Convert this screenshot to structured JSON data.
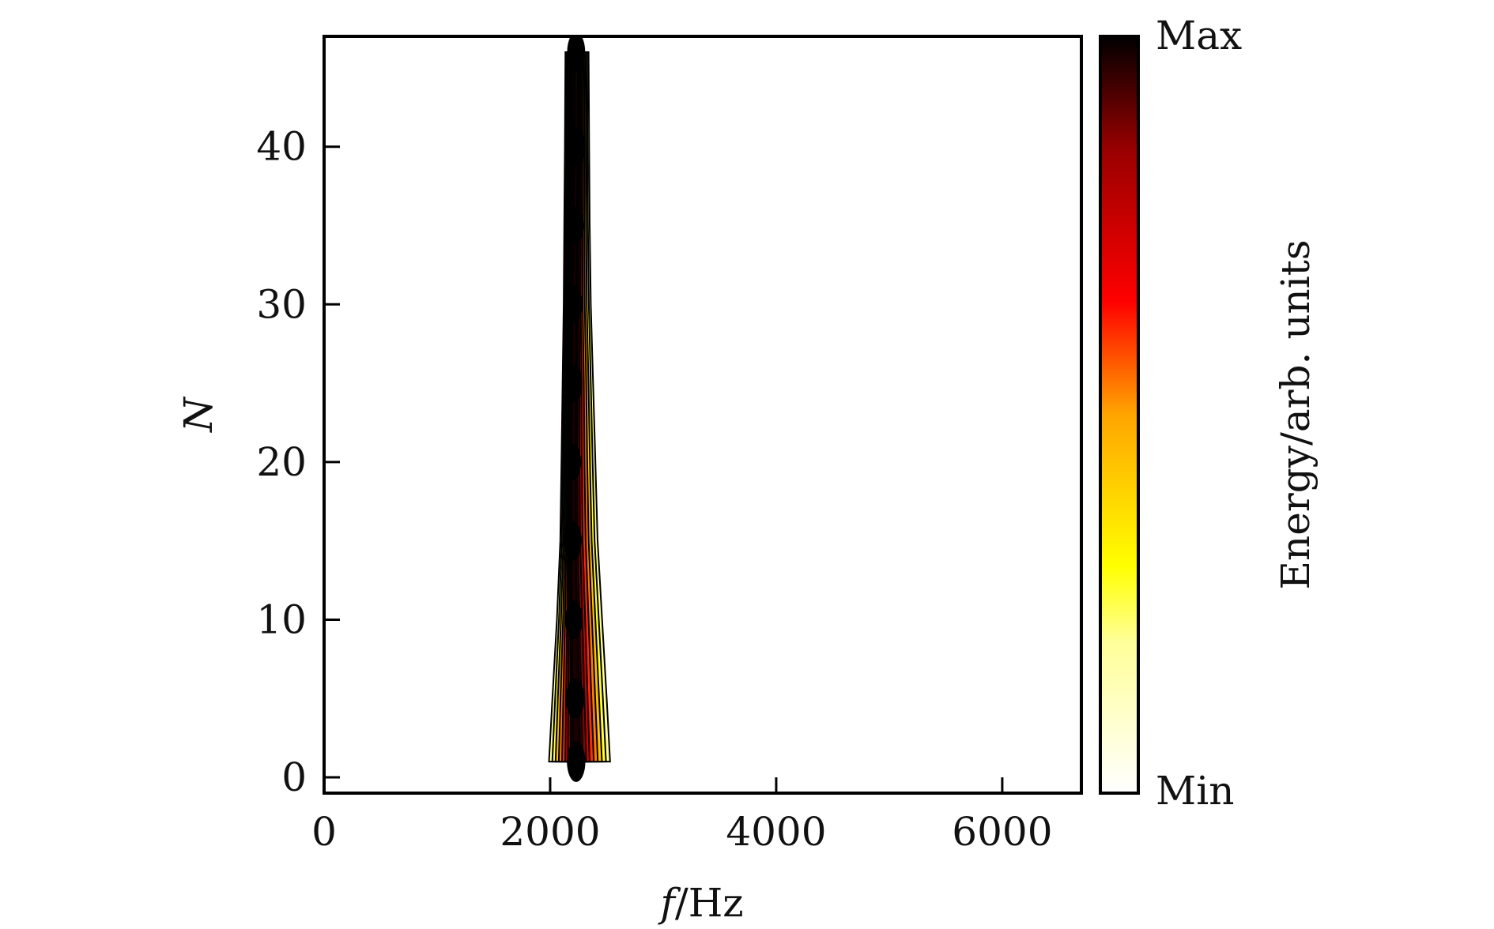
{
  "chart_data": {
    "type": "heatmap",
    "title": "",
    "xlabel_var": "f",
    "xlabel_unit": "/Hz",
    "ylabel": "N",
    "xlim": [
      0,
      6700
    ],
    "ylim": [
      -1,
      47
    ],
    "xticks": [
      0,
      2000,
      4000,
      6000
    ],
    "yticks": [
      0,
      10,
      20,
      30,
      40
    ],
    "grid": false,
    "colorbar": {
      "label": "Energy/arb. units",
      "max_label": "Max",
      "min_label": "Min",
      "colors": [
        "#ffffff",
        "#ffff99",
        "#ffff00",
        "#ffa500",
        "#ff0000",
        "#990000",
        "#000000"
      ]
    },
    "energy_band": {
      "n": [
        1,
        5,
        10,
        15,
        20,
        25,
        30,
        35,
        40,
        46
      ],
      "f_center": [
        2230,
        2220,
        2210,
        2200,
        2200,
        2210,
        2210,
        2220,
        2230,
        2230
      ],
      "f_left_outer": [
        1990,
        2020,
        2060,
        2090,
        2100,
        2110,
        2120,
        2125,
        2130,
        2135
      ],
      "f_right_outer": [
        2530,
        2500,
        2460,
        2420,
        2400,
        2380,
        2360,
        2350,
        2345,
        2340
      ],
      "peak_energy": [
        0.95,
        0.92,
        0.85,
        0.9,
        0.75,
        0.8,
        0.82,
        0.85,
        0.88,
        0.9
      ]
    }
  }
}
